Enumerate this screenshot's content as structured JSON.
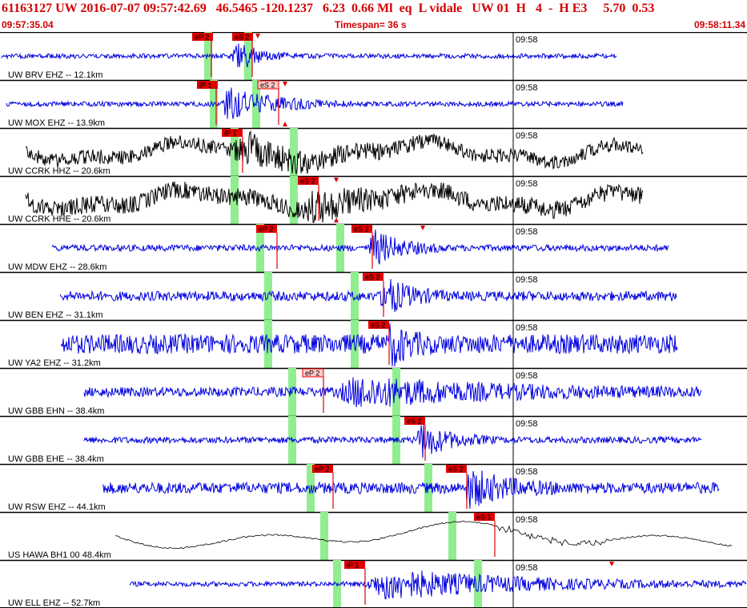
{
  "header": {
    "title": "61163127 UW 2016-07-07 09:57:42.69   46.5465 -120.1237   6.23  0.66 Ml  eq  L vidale   UW 01  H   4  -  H E3     5.70  0.53",
    "start_time": "09:57:35.04",
    "timespan": "Timespan=  36 s",
    "end_time": "09:58:11.34"
  },
  "colors": {
    "title": "#d40000",
    "blue_trace": "#0000e0",
    "black_trace": "#000000",
    "pick_flag": "#e00000",
    "pick_flag_light": "#ffc8c8",
    "green_window": "#90ee90"
  },
  "minute_label": "09:58",
  "traces": [
    {
      "label": "UW BRV EHZ -- 12.1km",
      "color": "blue",
      "picks": [
        {
          "text": "eP 2",
          "style": "solid"
        },
        {
          "text": "eS 2",
          "style": "solid"
        }
      ]
    },
    {
      "label": "UW MOX EHZ -- 13.9km",
      "color": "blue",
      "picks": [
        {
          "text": "iP 1",
          "style": "solid"
        },
        {
          "text": "eS 2",
          "style": "light"
        }
      ]
    },
    {
      "label": "UW CCRK HHZ -- 20.6km",
      "color": "black",
      "picks": [
        {
          "text": "iP 1",
          "style": "solid"
        }
      ]
    },
    {
      "label": "UW CCRK HHE -- 20.6km",
      "color": "black",
      "picks": [
        {
          "text": "eS 2",
          "style": "solid"
        }
      ]
    },
    {
      "label": "UW MDW EHZ -- 28.6km",
      "color": "blue",
      "picks": [
        {
          "text": "eP 2",
          "style": "solid"
        },
        {
          "text": "eS 2",
          "style": "solid"
        }
      ]
    },
    {
      "label": "UW BEN EHZ -- 31.1km",
      "color": "blue",
      "picks": [
        {
          "text": "eS 2",
          "style": "solid"
        }
      ]
    },
    {
      "label": "UW YA2 EHZ -- 31.2km",
      "color": "blue",
      "picks": [
        {
          "text": "eS 2",
          "style": "solid"
        }
      ]
    },
    {
      "label": "UW GBB EHN -- 38.4km",
      "color": "blue",
      "picks": [
        {
          "text": "eP 2",
          "style": "light"
        }
      ]
    },
    {
      "label": "UW GBB EHE -- 38.4km",
      "color": "blue",
      "picks": [
        {
          "text": "eS 2",
          "style": "solid"
        }
      ]
    },
    {
      "label": "UW RSW EHZ -- 44.1km",
      "color": "blue",
      "picks": [
        {
          "text": "eP 2",
          "style": "solid"
        },
        {
          "text": "eS 2",
          "style": "solid"
        }
      ]
    },
    {
      "label": "US HAWA BH1 00 48.4km",
      "color": "thin",
      "picks": [
        {
          "text": "eS 1",
          "style": "solid"
        }
      ]
    },
    {
      "label": "UW ELL EHZ -- 52.7km",
      "color": "blue",
      "picks": [
        {
          "text": "iP 1",
          "style": "solid"
        }
      ]
    }
  ]
}
